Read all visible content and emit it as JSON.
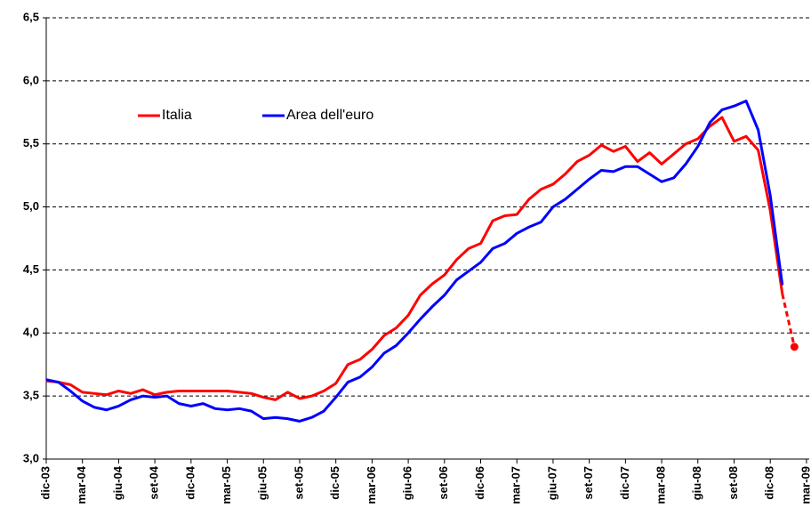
{
  "chart_data": {
    "type": "line",
    "categories": [
      "dic-03",
      null,
      null,
      "mar-04",
      null,
      null,
      "giu-04",
      null,
      null,
      "set-04",
      null,
      null,
      "dic-04",
      null,
      null,
      "mar-05",
      null,
      null,
      "giu-05",
      null,
      null,
      "set-05",
      null,
      null,
      "dic-05",
      null,
      null,
      "mar-06",
      null,
      null,
      "giu-06",
      null,
      null,
      "set-06",
      null,
      null,
      "dic-06",
      null,
      null,
      "mar-07",
      null,
      null,
      "giu-07",
      null,
      null,
      "set-07",
      null,
      null,
      "dic-07",
      null,
      null,
      "mar-08",
      null,
      null,
      "giu-08",
      null,
      null,
      "set-08",
      null,
      null,
      "dic-08",
      null,
      null,
      "mar-09"
    ],
    "series": [
      {
        "name": "Italia",
        "color": "#ff0000",
        "dashed_last": true,
        "values": [
          3.62,
          3.61,
          3.59,
          3.53,
          3.52,
          3.51,
          3.54,
          3.52,
          3.55,
          3.51,
          3.53,
          3.54,
          3.54,
          3.54,
          3.54,
          3.54,
          3.53,
          3.52,
          3.49,
          3.47,
          3.53,
          3.48,
          3.5,
          3.54,
          3.6,
          3.75,
          3.79,
          3.87,
          3.98,
          4.04,
          4.14,
          4.3,
          4.39,
          4.46,
          4.58,
          4.67,
          4.71,
          4.89,
          4.93,
          4.94,
          5.06,
          5.14,
          5.18,
          5.26,
          5.36,
          5.41,
          5.49,
          5.44,
          5.48,
          5.36,
          5.43,
          5.34,
          5.42,
          5.5,
          5.54,
          5.64,
          5.71,
          5.52,
          5.56,
          5.45,
          4.97,
          4.31,
          3.89,
          null
        ]
      },
      {
        "name": "Area dell'euro",
        "color": "#0000ff",
        "dashed_last": false,
        "values": [
          3.63,
          3.61,
          3.54,
          3.46,
          3.41,
          3.39,
          3.42,
          3.47,
          3.5,
          3.49,
          3.5,
          3.44,
          3.42,
          3.44,
          3.4,
          3.39,
          3.4,
          3.38,
          3.32,
          3.33,
          3.32,
          3.3,
          3.33,
          3.38,
          3.49,
          3.61,
          3.65,
          3.73,
          3.84,
          3.9,
          4.0,
          4.11,
          4.21,
          4.3,
          4.42,
          4.49,
          4.56,
          4.67,
          4.71,
          4.79,
          4.84,
          4.88,
          5.0,
          5.06,
          5.14,
          5.22,
          5.29,
          5.28,
          5.32,
          5.32,
          5.26,
          5.2,
          5.23,
          5.34,
          5.48,
          5.67,
          5.77,
          5.8,
          5.84,
          5.61,
          5.09,
          4.38,
          null,
          null
        ]
      }
    ],
    "ylim": [
      3.0,
      6.5
    ],
    "yticks": [
      {
        "value": 3.0,
        "label": "3,0"
      },
      {
        "value": 3.5,
        "label": "3,5"
      },
      {
        "value": 4.0,
        "label": "4,0"
      },
      {
        "value": 4.5,
        "label": "4,5"
      },
      {
        "value": 5.0,
        "label": "5,0"
      },
      {
        "value": 5.5,
        "label": "5,5"
      },
      {
        "value": 6.0,
        "label": "6,0"
      },
      {
        "value": 6.5,
        "label": "6,5"
      }
    ],
    "grid": true,
    "legend": "upper left"
  }
}
